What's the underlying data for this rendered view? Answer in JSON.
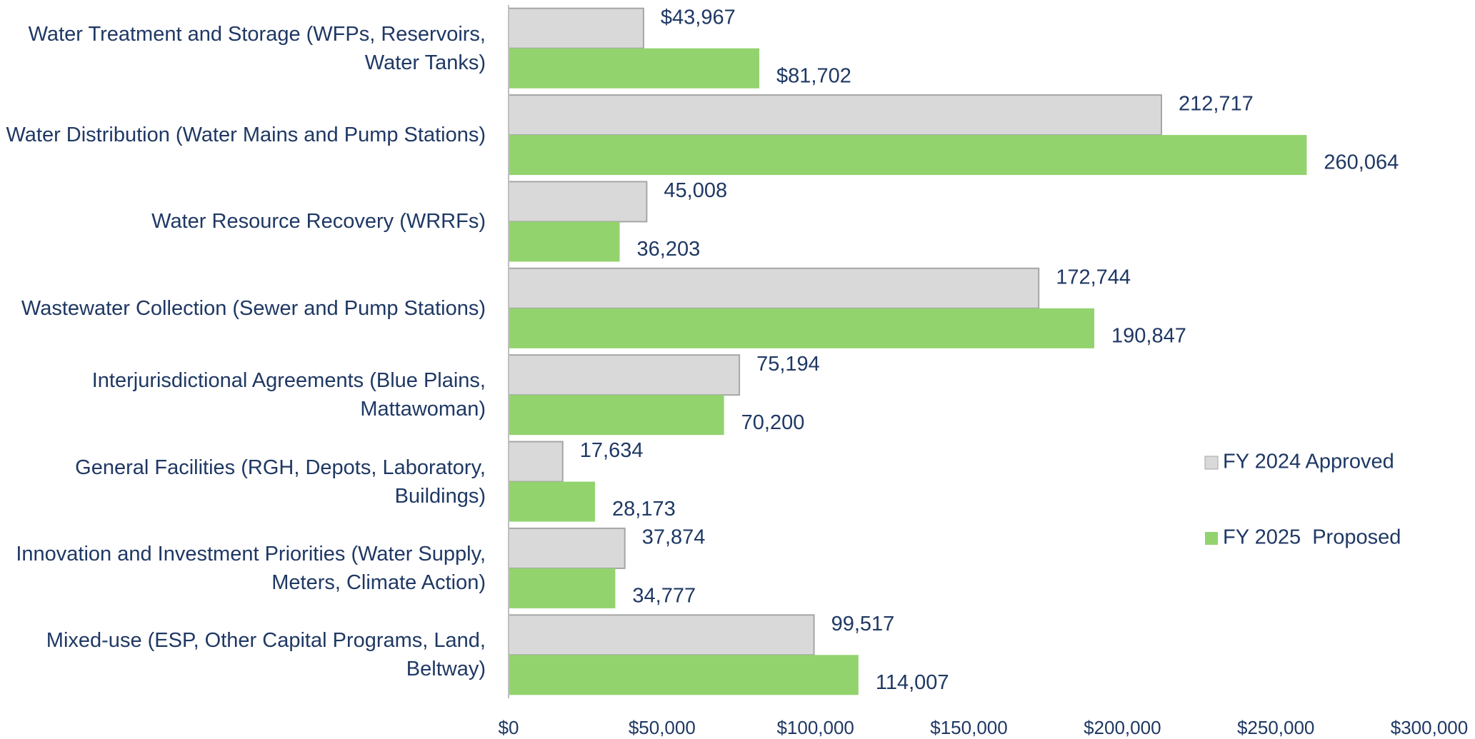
{
  "chart_data": {
    "type": "bar",
    "orientation": "horizontal",
    "categories": [
      "Water Treatment and Storage (WFPs, Reservoirs, Water Tanks)",
      "Water Distribution (Water Mains and Pump Stations)",
      "Water Resource Recovery (WRRFs)",
      "Wastewater Collection (Sewer and Pump Stations)",
      "Interjurisdictional Agreements (Blue Plains, Mattawoman)",
      "General Facilities (RGH, Depots, Laboratory, Buildings)",
      "Innovation and Investment Priorities (Water Supply, Meters, Climate Action)",
      "Mixed-use (ESP, Other Capital Programs, Land, Beltway)"
    ],
    "series": [
      {
        "name": "FY 2024 Approved",
        "color": "#d9d9d9",
        "values": [
          43967,
          212717,
          45008,
          172744,
          75194,
          17634,
          37874,
          99517
        ],
        "value_labels": [
          "$43,967",
          "212,717",
          "45,008",
          "172,744",
          "75,194",
          "17,634",
          "37,874",
          "99,517"
        ]
      },
      {
        "name": "FY 2025  Proposed",
        "color": "#92d36e",
        "values": [
          81702,
          260064,
          36203,
          190847,
          70200,
          28173,
          34777,
          114007
        ],
        "value_labels": [
          "$81,702",
          "260,064",
          "36,203",
          "190,847",
          "70,200",
          "28,173",
          "34,777",
          "114,007"
        ]
      }
    ],
    "xlim": [
      0,
      300000
    ],
    "xticks": [
      {
        "value": 0,
        "label": "$0"
      },
      {
        "value": 50000,
        "label": "$50,000"
      },
      {
        "value": 100000,
        "label": "$100,000"
      },
      {
        "value": 150000,
        "label": "$150,000"
      },
      {
        "value": 200000,
        "label": "$200,000"
      },
      {
        "value": 250000,
        "label": "$250,000"
      },
      {
        "value": 300000,
        "label": "$300,000"
      }
    ],
    "legend": "right"
  }
}
